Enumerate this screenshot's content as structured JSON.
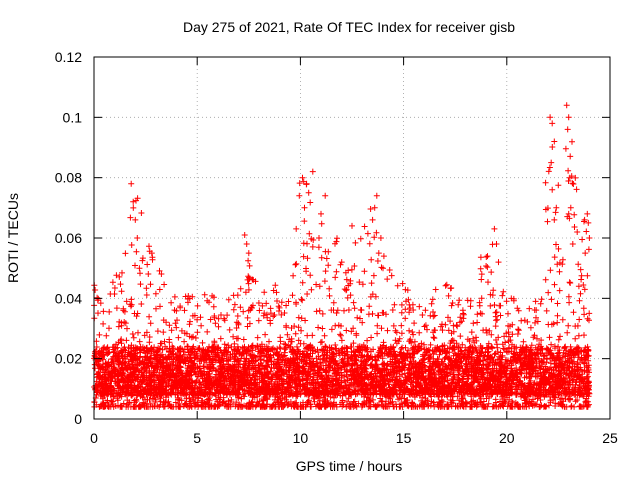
{
  "chart_data": {
    "type": "scatter",
    "title": "Day 275 of 2021, Rate Of TEC Index for receiver gisb",
    "xlabel": "GPS time / hours",
    "ylabel": "ROTI / TECUs",
    "xlim": [
      0,
      25
    ],
    "ylim": [
      0,
      0.12
    ],
    "xticks": [
      0,
      5,
      10,
      15,
      20,
      25
    ],
    "xtick_labels": [
      "0",
      "5",
      "10",
      "15",
      "20",
      "25"
    ],
    "yticks": [
      0,
      0.02,
      0.04,
      0.06,
      0.08,
      0.1,
      0.12
    ],
    "ytick_labels": [
      "0",
      "0.02",
      "0.04",
      "0.06",
      "0.08",
      "0.1",
      "0.12"
    ],
    "grid": true,
    "marker": "plus",
    "series": [
      {
        "name": "ROTI",
        "color": "#ff0000",
        "note": "dense scatter; baseline ~0.005-0.03 across 0-24 h",
        "envelope": {
          "x": [
            0,
            0.5,
            1,
            1.5,
            2,
            2.5,
            3,
            3.5,
            4,
            4.5,
            5,
            5.5,
            6,
            6.5,
            7,
            7.5,
            8,
            8.5,
            9,
            9.5,
            10,
            10.5,
            11,
            11.5,
            12,
            12.5,
            13,
            13.5,
            14,
            14.5,
            15,
            15.5,
            16,
            16.5,
            17,
            17.5,
            18,
            18.5,
            19,
            19.5,
            20,
            20.5,
            21,
            21.5,
            22,
            22.5,
            23,
            23.5,
            24
          ],
          "max": [
            0.045,
            0.035,
            0.05,
            0.057,
            0.078,
            0.062,
            0.055,
            0.045,
            0.04,
            0.042,
            0.043,
            0.048,
            0.038,
            0.04,
            0.045,
            0.062,
            0.042,
            0.043,
            0.046,
            0.048,
            0.082,
            0.08,
            0.07,
            0.055,
            0.065,
            0.058,
            0.062,
            0.074,
            0.058,
            0.048,
            0.045,
            0.04,
            0.038,
            0.045,
            0.047,
            0.042,
            0.038,
            0.048,
            0.063,
            0.055,
            0.045,
            0.04,
            0.036,
            0.043,
            0.1,
            0.08,
            0.105,
            0.07,
            0.068
          ]
        },
        "outliers": [
          [
            1.8,
            0.078
          ],
          [
            1.9,
            0.072
          ],
          [
            2.0,
            0.066
          ],
          [
            2.1,
            0.06
          ],
          [
            2.8,
            0.055
          ],
          [
            2.2,
            0.05
          ],
          [
            7.3,
            0.061
          ],
          [
            7.4,
            0.058
          ],
          [
            7.5,
            0.055
          ],
          [
            10.1,
            0.08
          ],
          [
            10.3,
            0.078
          ],
          [
            10.6,
            0.082
          ],
          [
            10.4,
            0.075
          ],
          [
            10.2,
            0.07
          ],
          [
            11.2,
            0.074
          ],
          [
            11.0,
            0.068
          ],
          [
            10.9,
            0.06
          ],
          [
            12.5,
            0.064
          ],
          [
            12.0,
            0.052
          ],
          [
            13.6,
            0.07
          ],
          [
            13.7,
            0.074
          ],
          [
            13.5,
            0.066
          ],
          [
            13.9,
            0.06
          ],
          [
            13.8,
            0.055
          ],
          [
            14.0,
            0.05
          ],
          [
            19.4,
            0.063
          ],
          [
            19.5,
            0.058
          ],
          [
            19.6,
            0.052
          ],
          [
            22.1,
            0.1
          ],
          [
            22.2,
            0.098
          ],
          [
            22.3,
            0.092
          ],
          [
            22.15,
            0.085
          ],
          [
            22.2,
            0.076
          ],
          [
            22.4,
            0.07
          ],
          [
            22.3,
            0.066
          ],
          [
            22.9,
            0.104
          ],
          [
            23.0,
            0.1
          ],
          [
            22.95,
            0.096
          ],
          [
            23.05,
            0.08
          ],
          [
            23.1,
            0.07
          ],
          [
            23.0,
            0.068
          ],
          [
            23.2,
            0.058
          ],
          [
            23.9,
            0.068
          ],
          [
            23.95,
            0.065
          ],
          [
            24.0,
            0.06
          ],
          [
            23.8,
            0.055
          ]
        ]
      }
    ]
  }
}
